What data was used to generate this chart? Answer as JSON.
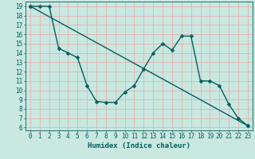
{
  "title": "",
  "xlabel": "Humidex (Indice chaleur)",
  "bg_color": "#c8e8e0",
  "grid_color": "#e8b0b0",
  "line_color": "#006060",
  "xlim": [
    -0.5,
    23.5
  ],
  "ylim": [
    5.7,
    19.5
  ],
  "yticks": [
    6,
    7,
    8,
    9,
    10,
    11,
    12,
    13,
    14,
    15,
    16,
    17,
    18,
    19
  ],
  "xticks": [
    0,
    1,
    2,
    3,
    4,
    5,
    6,
    7,
    8,
    9,
    10,
    11,
    12,
    13,
    14,
    15,
    16,
    17,
    18,
    19,
    20,
    21,
    22,
    23
  ],
  "line1_x": [
    0,
    1,
    2,
    3,
    4,
    5,
    6,
    7,
    8,
    9,
    10,
    11,
    12,
    13,
    14,
    15,
    16,
    17,
    18,
    19,
    20,
    21,
    22,
    23
  ],
  "line1_y": [
    19,
    19,
    19,
    14.5,
    14,
    13.5,
    10.5,
    8.8,
    8.7,
    8.7,
    9.8,
    10.5,
    12.3,
    14,
    15,
    14.3,
    15.8,
    15.8,
    11,
    11,
    10.5,
    8.5,
    7,
    6.2
  ],
  "line2_x": [
    0,
    23
  ],
  "line2_y": [
    19,
    6.2
  ],
  "markersize": 2.5,
  "linewidth": 1.0,
  "xlabel_fontsize": 6.5,
  "tick_fontsize": 5.5
}
